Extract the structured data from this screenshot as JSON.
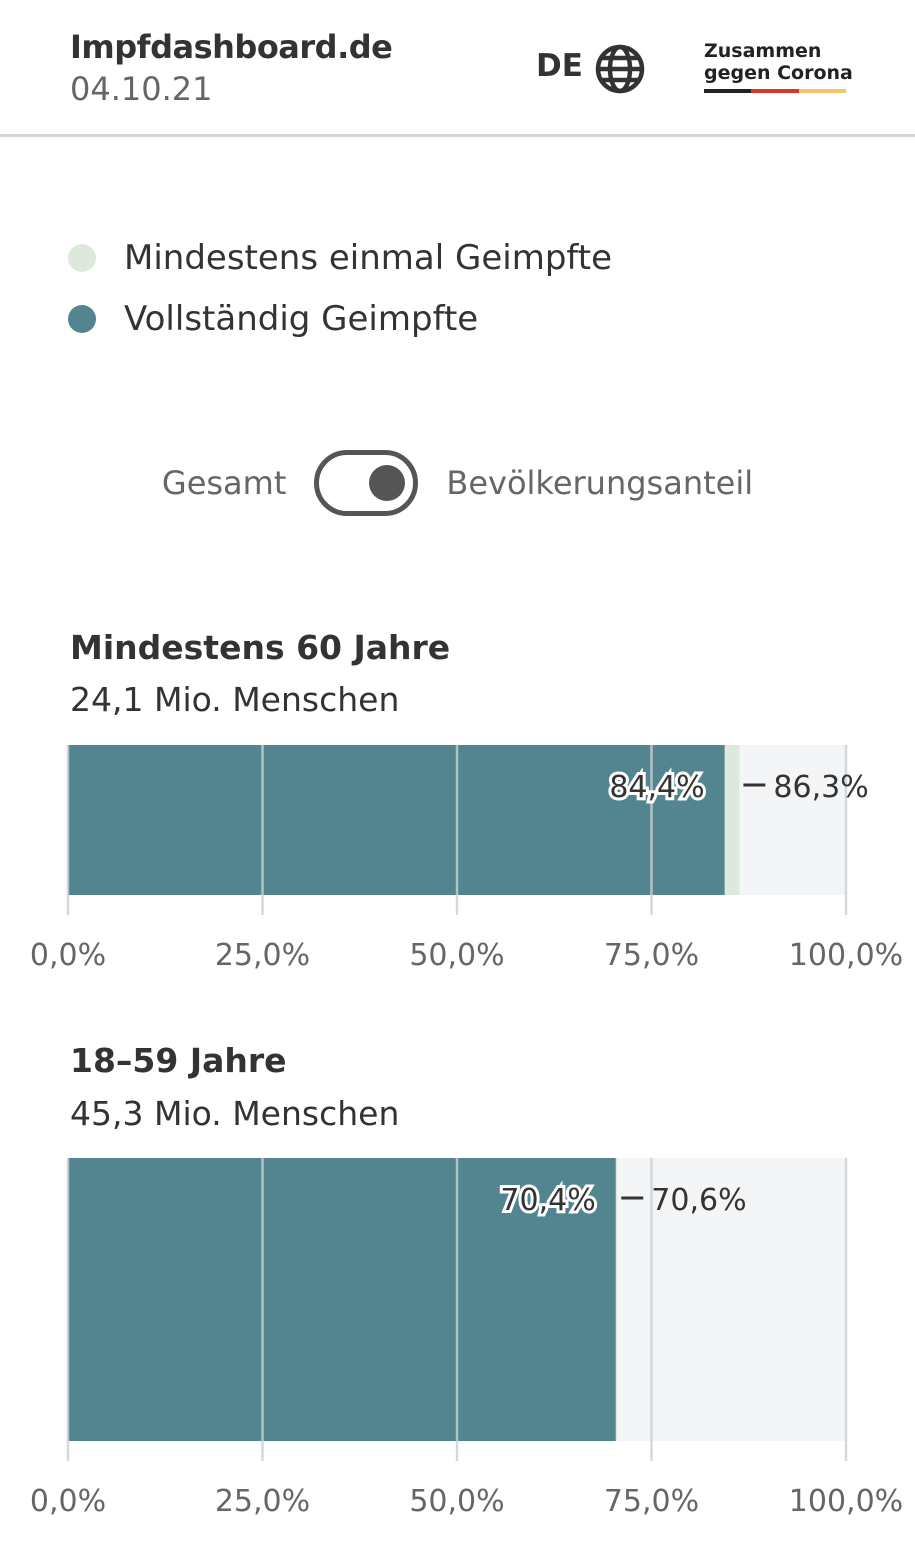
{
  "header": {
    "title": "Impfdashboard.de",
    "date": "04.10.21",
    "language": "DE",
    "language_icon": "globe-icon",
    "brand_line1": "Zusammen",
    "brand_line2": "gegen Corona",
    "brand_colors": [
      "#222222",
      "#d03b2c",
      "#f3c46d"
    ]
  },
  "legend": [
    {
      "label": "Mindestens einmal Geimpfte",
      "color": "#dde9dc"
    },
    {
      "label": "Vollständig Geimpfte",
      "color": "#52858f"
    }
  ],
  "toggle": {
    "left_label": "Gesamt",
    "right_label": "Bevölkerungsanteil",
    "state": "Bevölkerungsanteil"
  },
  "chart_data": [
    {
      "type": "bar",
      "title": "Mindestens 60 Jahre",
      "subtitle": "24,1 Mio. Menschen",
      "series": [
        {
          "name": "Vollständig Geimpfte",
          "value": 84.4,
          "label": "84,4%"
        },
        {
          "name": "Mindestens einmal Geimpfte",
          "value": 86.3,
          "label": "86,3%"
        }
      ],
      "xlim": [
        0,
        100
      ],
      "ticks": [
        "0,0%",
        "25,0%",
        "50,0%",
        "75,0%",
        "100,0%"
      ]
    },
    {
      "type": "bar",
      "title": "18–59 Jahre",
      "subtitle": "45,3 Mio. Menschen",
      "series": [
        {
          "name": "Vollständig Geimpfte",
          "value": 70.4,
          "label": "70,4%"
        },
        {
          "name": "Mindestens einmal Geimpfte",
          "value": 70.6,
          "label": "70,6%"
        }
      ],
      "xlim": [
        0,
        100
      ],
      "ticks": [
        "0,0%",
        "25,0%",
        "50,0%",
        "75,0%",
        "100,0%"
      ]
    }
  ]
}
